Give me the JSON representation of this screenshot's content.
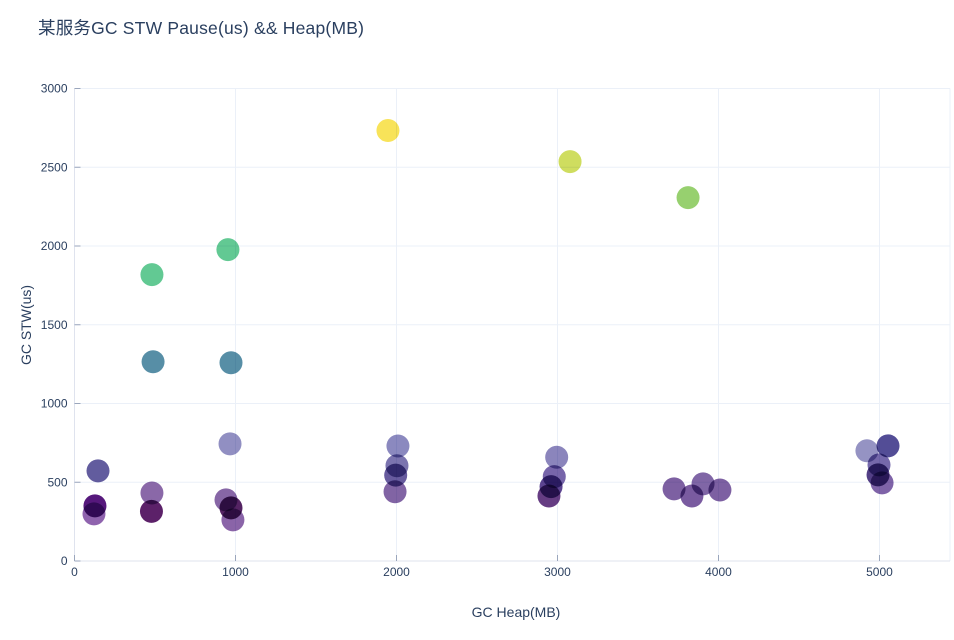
{
  "title": "某服务GC STW Pause(us) && Heap(MB)",
  "chart_data": {
    "type": "scatter",
    "title": "某服务GC STW Pause(us) && Heap(MB)",
    "xlabel": "GC Heap(MB)",
    "ylabel": "GC STW(us)",
    "xlim": [
      0,
      5438
    ],
    "ylim": [
      0,
      3000
    ],
    "x_ticks": [
      0,
      1000,
      2000,
      3000,
      4000,
      5000
    ],
    "y_ticks": [
      0,
      500,
      1000,
      1500,
      2000,
      2500,
      3000
    ],
    "grid": true,
    "legend_position": "none",
    "marker_diameter_px": 23,
    "points": [
      {
        "x": 146,
        "y": 572,
        "color": "#625c9e"
      },
      {
        "x": 121,
        "y": 299,
        "color": "#8f63ae"
      },
      {
        "x": 127,
        "y": 350,
        "color": "#56187c"
      },
      {
        "x": 481,
        "y": 1818,
        "color": "#62c993"
      },
      {
        "x": 488,
        "y": 1265,
        "color": "#578ea6"
      },
      {
        "x": 481,
        "y": 432,
        "color": "#8a68a8"
      },
      {
        "x": 478,
        "y": 315,
        "color": "#5c2169"
      },
      {
        "x": 953,
        "y": 1977,
        "color": "#62c993"
      },
      {
        "x": 972,
        "y": 1259,
        "color": "#578ea6"
      },
      {
        "x": 966,
        "y": 744,
        "color": "#918fc2"
      },
      {
        "x": 941,
        "y": 388,
        "color": "#8766a6"
      },
      {
        "x": 984,
        "y": 261,
        "color": "#8a64a8"
      },
      {
        "x": 972,
        "y": 337,
        "color": "#542363"
      },
      {
        "x": 1947,
        "y": 2733,
        "color": "#f8e359"
      },
      {
        "x": 2009,
        "y": 730,
        "color": "#8b89bf"
      },
      {
        "x": 2003,
        "y": 605,
        "color": "#7b74af"
      },
      {
        "x": 1995,
        "y": 545,
        "color": "#675b9e"
      },
      {
        "x": 1991,
        "y": 440,
        "color": "#8164a4"
      },
      {
        "x": 3078,
        "y": 2536,
        "color": "#cfdd5f"
      },
      {
        "x": 2995,
        "y": 659,
        "color": "#8b85bc"
      },
      {
        "x": 2980,
        "y": 536,
        "color": "#7765aa"
      },
      {
        "x": 2960,
        "y": 472,
        "color": "#5c4490"
      },
      {
        "x": 2947,
        "y": 413,
        "color": "#663d83"
      },
      {
        "x": 3811,
        "y": 2307,
        "color": "#97d06f"
      },
      {
        "x": 3724,
        "y": 458,
        "color": "#7d60a2"
      },
      {
        "x": 3835,
        "y": 413,
        "color": "#7a5ba0"
      },
      {
        "x": 3904,
        "y": 490,
        "color": "#8066a6"
      },
      {
        "x": 4009,
        "y": 451,
        "color": "#7d60a2"
      },
      {
        "x": 4922,
        "y": 700,
        "color": "#9593c3"
      },
      {
        "x": 5053,
        "y": 731,
        "color": "#534d96"
      },
      {
        "x": 4997,
        "y": 610,
        "color": "#7568ab"
      },
      {
        "x": 4991,
        "y": 547,
        "color": "#533f86"
      },
      {
        "x": 5016,
        "y": 496,
        "color": "#7f63a8"
      }
    ]
  },
  "theme": {
    "background": "#ffffff",
    "title_color": "#2a3f5f",
    "tick_label_color": "#2a3f5f",
    "grid_color": "#ebf0f8",
    "axis_line_color": "#dfe3ee",
    "tick_mark_color": "#9aa6bc"
  }
}
